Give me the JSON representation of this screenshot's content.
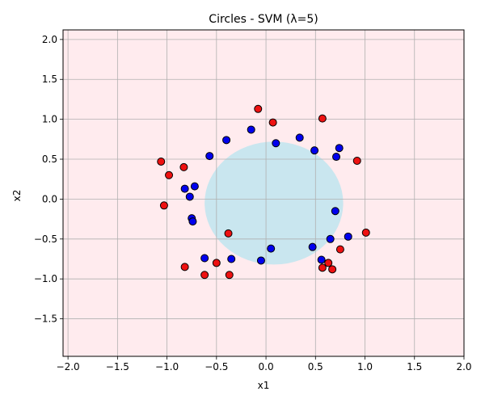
{
  "chart_data": {
    "type": "scatter",
    "title": "Circles - SVM (λ=5)",
    "xlabel": "x1",
    "ylabel": "x2",
    "xlim": [
      -2.05,
      2.0
    ],
    "ylim": [
      -1.97,
      2.12
    ],
    "x_ticks": [
      "−2.0",
      "−1.5",
      "−1.0",
      "−0.5",
      "0.0",
      "0.5",
      "1.0",
      "1.5",
      "2.0"
    ],
    "y_ticks": [
      "−1.5",
      "−1.0",
      "−0.5",
      "0.0",
      "0.5",
      "1.0",
      "1.5",
      "2.0"
    ],
    "x_tick_values": [
      -2.0,
      -1.5,
      -1.0,
      -0.5,
      0.0,
      0.5,
      1.0,
      1.5,
      2.0
    ],
    "y_tick_values": [
      -1.5,
      -1.0,
      -0.5,
      0.0,
      0.5,
      1.0,
      1.5,
      2.0
    ],
    "grid": true,
    "decision_region": {
      "inside_class": "blue",
      "center": [
        0.08,
        -0.05
      ],
      "radius_x": 0.7,
      "radius_y": 0.77,
      "inside_color": "#c9e6ef",
      "outside_color": "#ffebee"
    },
    "series": [
      {
        "color": "#ee1111",
        "points": [
          [
            -1.06,
            0.47
          ],
          [
            -0.98,
            0.3
          ],
          [
            -0.83,
            0.4
          ],
          [
            -1.03,
            -0.08
          ],
          [
            -0.08,
            1.13
          ],
          [
            0.07,
            0.96
          ],
          [
            0.57,
            1.01
          ],
          [
            0.92,
            0.48
          ],
          [
            -0.38,
            -0.43
          ],
          [
            1.01,
            -0.42
          ],
          [
            0.75,
            -0.63
          ],
          [
            0.63,
            -0.8
          ],
          [
            0.57,
            -0.86
          ],
          [
            0.67,
            -0.88
          ],
          [
            -0.82,
            -0.85
          ],
          [
            -0.62,
            -0.95
          ],
          [
            -0.37,
            -0.95
          ],
          [
            -0.5,
            -0.8
          ]
        ]
      },
      {
        "color": "#0000ee",
        "points": [
          [
            -0.57,
            0.54
          ],
          [
            -0.4,
            0.74
          ],
          [
            -0.15,
            0.87
          ],
          [
            0.1,
            0.7
          ],
          [
            0.34,
            0.77
          ],
          [
            0.49,
            0.61
          ],
          [
            0.74,
            0.64
          ],
          [
            0.71,
            0.53
          ],
          [
            -0.82,
            0.13
          ],
          [
            -0.72,
            0.16
          ],
          [
            -0.77,
            0.03
          ],
          [
            -0.75,
            -0.24
          ],
          [
            -0.74,
            -0.28
          ],
          [
            0.7,
            -0.15
          ],
          [
            0.83,
            -0.47
          ],
          [
            0.65,
            -0.5
          ],
          [
            0.47,
            -0.6
          ],
          [
            0.56,
            -0.76
          ],
          [
            -0.62,
            -0.74
          ],
          [
            -0.35,
            -0.75
          ],
          [
            -0.05,
            -0.77
          ],
          [
            0.05,
            -0.62
          ]
        ]
      }
    ]
  }
}
